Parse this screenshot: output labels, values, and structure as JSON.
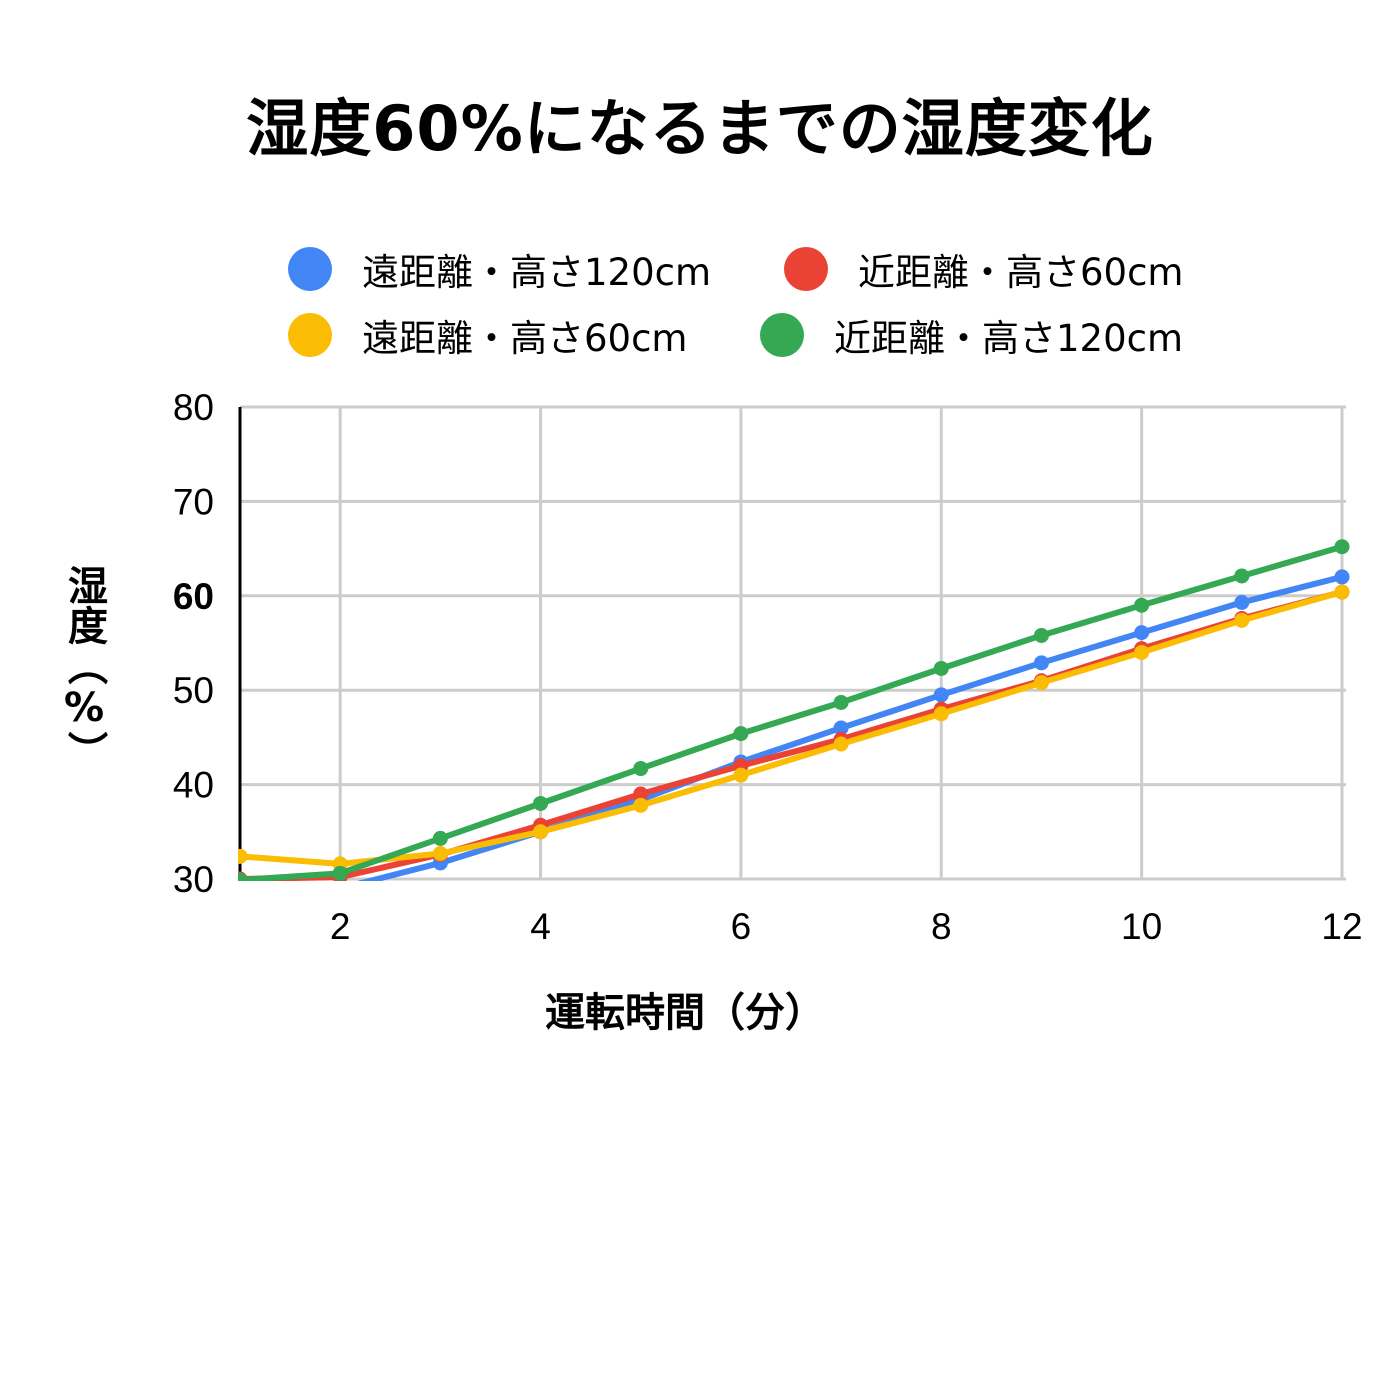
{
  "chart_data": {
    "type": "line",
    "title": "湿度60%になるまでの湿度変化",
    "xlabel": "運転時間（分）",
    "ylabel": "湿度（%）",
    "xlim": [
      1,
      12
    ],
    "ylim": [
      30,
      80
    ],
    "x_ticks": [
      2,
      4,
      6,
      8,
      10,
      12
    ],
    "y_ticks": [
      30,
      40,
      50,
      60,
      70,
      80
    ],
    "highlight_y_tick": 60,
    "highlight_color": "#ff0000",
    "grid": true,
    "legend_position": "top",
    "x": [
      1,
      2,
      3,
      4,
      5,
      6,
      7,
      8,
      9,
      10,
      11,
      12
    ],
    "series": [
      {
        "name": "遠距離・高さ120cm",
        "color": "#4285f4",
        "values": [
          28.0,
          29.0,
          31.7,
          35.0,
          38.4,
          42.4,
          46.0,
          49.5,
          52.9,
          56.1,
          59.3,
          62.0
        ]
      },
      {
        "name": "近距離・高さ60cm",
        "color": "#ea4335",
        "values": [
          30.0,
          30.2,
          32.6,
          35.7,
          39.0,
          42.0,
          44.8,
          48.0,
          51.0,
          54.4,
          57.6,
          60.4
        ]
      },
      {
        "name": "遠距離・高さ60cm",
        "color": "#fbbc04",
        "values": [
          32.4,
          31.6,
          32.7,
          35.0,
          37.8,
          41.0,
          44.3,
          47.5,
          50.8,
          54.0,
          57.4,
          60.4
        ]
      },
      {
        "name": "近距離・高さ120cm",
        "color": "#34a853",
        "values": [
          29.9,
          30.6,
          34.3,
          38.0,
          41.7,
          45.4,
          48.7,
          52.3,
          55.8,
          59.0,
          62.1,
          65.2
        ]
      }
    ]
  }
}
